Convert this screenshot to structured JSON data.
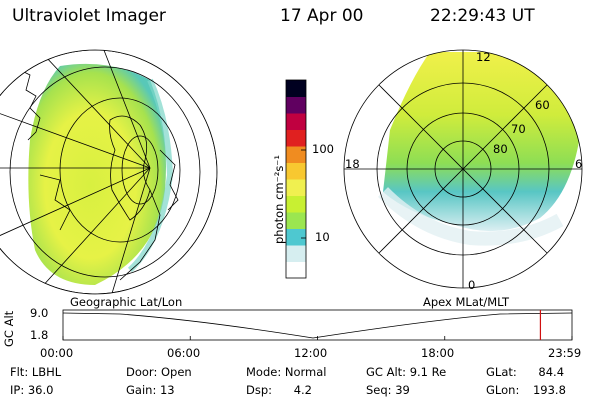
{
  "header": {
    "title": "Ultraviolet Imager",
    "date": "17 Apr 00",
    "time": "22:29:43 UT"
  },
  "colorbar": {
    "unit_label": "photon cm⁻²s⁻¹",
    "ticks": [
      "100",
      "10"
    ],
    "colors": [
      "#ffffff",
      "#d6eef0",
      "#4ec8d0",
      "#9be650",
      "#c8f032",
      "#f0f050",
      "#f8c830",
      "#f08c20",
      "#e02020",
      "#c00040",
      "#600060",
      "#000020"
    ]
  },
  "left_map": {
    "caption": "Geographic Lat/Lon"
  },
  "right_map": {
    "caption": "Apex MLat/MLT",
    "mlt_labels": {
      "top": "12",
      "left": "18",
      "right": "6",
      "bottom": "0"
    },
    "lat_labels": [
      "60",
      "70",
      "80"
    ]
  },
  "altitude_plot": {
    "ylabel": "GC Alt",
    "yticks": [
      "9.0",
      "1.8"
    ],
    "xticks": [
      "00:00",
      "06:00",
      "12:00",
      "18:00",
      "23:59"
    ],
    "marker_time": "22:29:43",
    "marker_color": "#d01010"
  },
  "status": {
    "col1": [
      {
        "label": "Flt:",
        "value": "LBHL"
      },
      {
        "label": "IP:",
        "value": "36.0"
      }
    ],
    "col2": [
      {
        "label": "Door:",
        "value": "Open"
      },
      {
        "label": "Gain:",
        "value": "13"
      }
    ],
    "col3": [
      {
        "label": "Mode:",
        "value": "Normal"
      },
      {
        "label": "Dsp:",
        "value": "4.2"
      }
    ],
    "col4": [
      {
        "label": "GC Alt:",
        "value": "9.1 Re"
      },
      {
        "label": "Seq:",
        "value": "39"
      }
    ],
    "col5": [
      {
        "label": "GLat:",
        "value": "84.4"
      },
      {
        "label": "GLon:",
        "value": "193.8"
      }
    ]
  }
}
